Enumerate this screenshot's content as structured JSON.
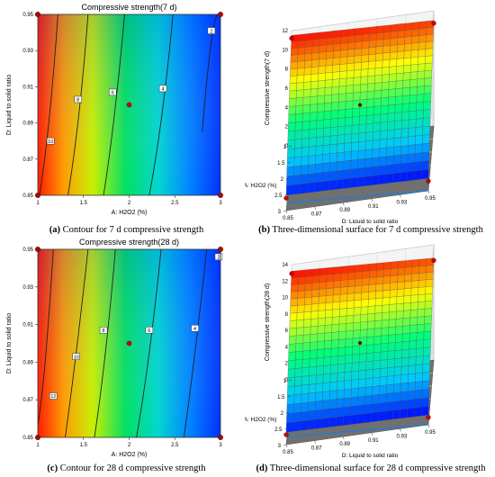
{
  "captions": {
    "a": {
      "letter": "(a)",
      "text": "Contour for 7 d compressive strength"
    },
    "b": {
      "letter": "(b)",
      "text": "Three-dimensional surface for 7 d compressive strength"
    },
    "c": {
      "letter": "(c)",
      "text": "Contour for 28 d compressive strength"
    },
    "d": {
      "letter": "(d)",
      "text": "Three-dimensional surface for 28 d compressive strength"
    }
  },
  "colors": {
    "low": "#0000ff",
    "mid": "#00ff80",
    "high": "#ff0000",
    "point": "#cc0000",
    "floor": "#707070"
  },
  "chart_data": [
    {
      "id": "a",
      "type": "heatmap",
      "title": "Compressive strength(7 d)",
      "xlabel": "A: H2O2 (%)",
      "ylabel": "D: Liquid to solid ratio",
      "xlim": [
        1,
        3
      ],
      "ylim": [
        0.85,
        0.95
      ],
      "xticks": [
        "1",
        "1.5",
        "2",
        "2.5",
        "3"
      ],
      "yticks": [
        "0.85",
        "0.87",
        "0.89",
        "0.91",
        "0.93",
        "0.95"
      ],
      "contours": [
        {
          "label": "10",
          "x": [
            1.22,
            1.13,
            1.02
          ],
          "y": [
            0.95,
            0.895,
            0.85
          ],
          "label_x": 1.14,
          "label_y": 0.88
        },
        {
          "label": "8",
          "x": [
            1.55,
            1.45,
            1.33
          ],
          "y": [
            0.95,
            0.895,
            0.85
          ],
          "label_x": 1.44,
          "label_y": 0.903
        },
        {
          "label": "6",
          "x": [
            1.95,
            1.84,
            1.72
          ],
          "y": [
            0.95,
            0.895,
            0.85
          ],
          "label_x": 1.82,
          "label_y": 0.907
        },
        {
          "label": "4",
          "x": [
            2.48,
            2.36,
            2.22
          ],
          "y": [
            0.95,
            0.895,
            0.85
          ],
          "label_x": 2.37,
          "label_y": 0.909
        },
        {
          "label": "2",
          "x": [
            2.98,
            2.9,
            2.8
          ],
          "y": [
            0.95,
            0.935,
            0.885
          ],
          "label_x": 2.9,
          "label_y": 0.941
        }
      ],
      "points": [
        {
          "x": 2,
          "y": 0.9
        },
        {
          "x": 1,
          "y": 0.95
        },
        {
          "x": 3,
          "y": 0.95
        },
        {
          "x": 1,
          "y": 0.85
        },
        {
          "x": 3,
          "y": 0.85
        }
      ]
    },
    {
      "id": "b",
      "type": "area",
      "ylabel": "Compressive strength(7 d)",
      "xlabel": "A: H2O2 (%)",
      "zlabel": "D: Liquid to solid ratio",
      "zticks": [
        "0",
        "2",
        "4",
        "6",
        "8",
        "10",
        "12"
      ],
      "zlim": [
        0,
        12
      ],
      "xticks": [
        "1",
        "1.5",
        "2",
        "2.5",
        "3"
      ],
      "dticks": [
        "0.85",
        "0.87",
        "0.89",
        "0.91",
        "0.93",
        "0.95"
      ],
      "corners": {
        "A1_D085": 11.5,
        "A1_D095": 11.0,
        "A3_D085": 1.6,
        "A3_D095": 1.3
      },
      "center_point": 6.6
    },
    {
      "id": "c",
      "type": "heatmap",
      "title": "Compressive strength(28 d)",
      "xlabel": "A: H2O2 (%)",
      "ylabel": "D: Liquid to solid ratio",
      "xlim": [
        1,
        3
      ],
      "ylim": [
        0.85,
        0.95
      ],
      "xticks": [
        "1",
        "1.5",
        "2",
        "2.5",
        "3"
      ],
      "yticks": [
        "0.85",
        "0.87",
        "0.89",
        "0.91",
        "0.93",
        "0.95"
      ],
      "contours": [
        {
          "label": "12",
          "x": [
            1.17,
            1.08,
            1.0
          ],
          "y": [
            0.95,
            0.89,
            0.857
          ],
          "label_x": 1.17,
          "label_y": 0.872
        },
        {
          "label": "10",
          "x": [
            1.55,
            1.42,
            1.3
          ],
          "y": [
            0.95,
            0.895,
            0.85
          ],
          "label_x": 1.42,
          "label_y": 0.893
        },
        {
          "label": "8",
          "x": [
            1.85,
            1.74,
            1.62
          ],
          "y": [
            0.95,
            0.895,
            0.85
          ],
          "label_x": 1.72,
          "label_y": 0.907
        },
        {
          "label": "6",
          "x": [
            2.35,
            2.22,
            2.08
          ],
          "y": [
            0.95,
            0.895,
            0.85
          ],
          "label_x": 2.22,
          "label_y": 0.907
        },
        {
          "label": "4",
          "x": [
            2.85,
            2.72,
            2.6
          ],
          "y": [
            0.95,
            0.895,
            0.85
          ],
          "label_x": 2.72,
          "label_y": 0.908
        },
        {
          "label": "2",
          "x": [
            2.99,
            2.99
          ],
          "y": [
            0.95,
            0.945
          ],
          "label_x": 2.98,
          "label_y": 0.946
        }
      ],
      "points": [
        {
          "x": 2,
          "y": 0.9
        },
        {
          "x": 1,
          "y": 0.95
        },
        {
          "x": 3,
          "y": 0.95
        },
        {
          "x": 1,
          "y": 0.85
        },
        {
          "x": 3,
          "y": 0.85
        }
      ]
    },
    {
      "id": "d",
      "type": "area",
      "ylabel": "Compressive strength(28 d)",
      "xlabel": "A: H2O2 (%)",
      "zlabel": "D: Liquid to solid ratio",
      "zticks": [
        "0",
        "2",
        "4",
        "6",
        "8",
        "10",
        "12",
        "14"
      ],
      "zlim": [
        0,
        14
      ],
      "xticks": [
        "1",
        "1.5",
        "2",
        "2.5",
        "3"
      ],
      "dticks": [
        "0.85",
        "0.87",
        "0.89",
        "0.91",
        "0.93",
        "0.95"
      ],
      "corners": {
        "A1_D085": 13.2,
        "A1_D095": 12.4,
        "A3_D085": 1.5,
        "A3_D095": 1.2
      },
      "center_point": 7.2
    }
  ]
}
